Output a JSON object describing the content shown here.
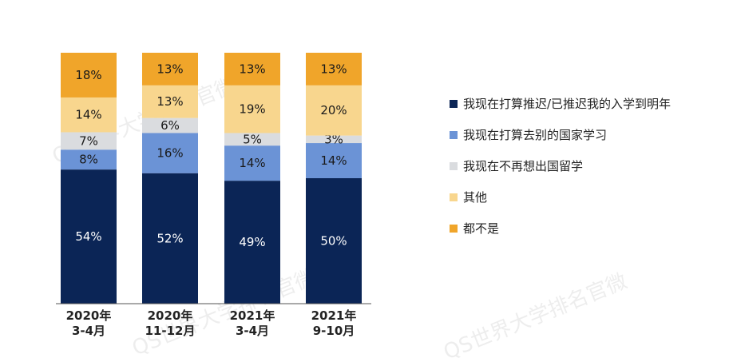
{
  "chart_data": {
    "type": "bar",
    "stacked": true,
    "categories": [
      [
        "2020年",
        "3-4月"
      ],
      [
        "2020年",
        "11-12月"
      ],
      [
        "2021年",
        "3-4月"
      ],
      [
        "2021年",
        "9-10月"
      ]
    ],
    "series": [
      {
        "name": "我现在打算推迟/已推迟我的入学到明年",
        "color": "#0b2556",
        "label_color": "#ffffff",
        "values": [
          54,
          52,
          49,
          50
        ],
        "labels": [
          "54%",
          "52%",
          "49%",
          "50%"
        ]
      },
      {
        "name": "我现在打算去别的国家学习",
        "color": "#6b93d6",
        "label_color": "#1a1a1a",
        "values": [
          8,
          16,
          14,
          14
        ],
        "labels": [
          "8%",
          "16%",
          "14%",
          "14%"
        ]
      },
      {
        "name": "我现在不再想出国留学",
        "color": "#dadcdf",
        "label_color": "#1a1a1a",
        "values": [
          7,
          6,
          5,
          3
        ],
        "labels": [
          "7%",
          "6%",
          "5%",
          "3%"
        ]
      },
      {
        "name": "其他",
        "color": "#f8d68e",
        "label_color": "#1a1a1a",
        "values": [
          14,
          13,
          19,
          20
        ],
        "labels": [
          "14%",
          "13%",
          "19%",
          "20%"
        ]
      },
      {
        "name": "都不是",
        "color": "#f0a52a",
        "label_color": "#1a1a1a",
        "values": [
          18,
          13,
          13,
          13
        ],
        "labels": [
          "18%",
          "13%",
          "13%",
          "13%"
        ]
      }
    ],
    "legend_position": "right",
    "grid": false
  },
  "watermark": "QS世界大学排名官微"
}
